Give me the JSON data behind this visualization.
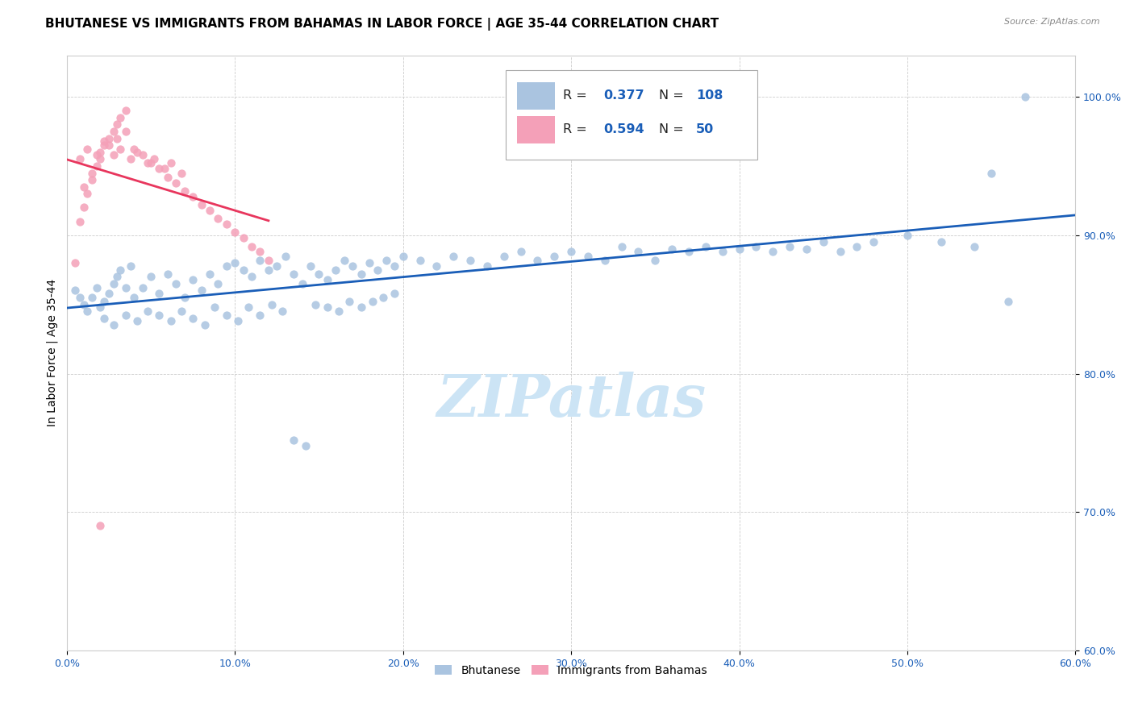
{
  "title": "BHUTANESE VS IMMIGRANTS FROM BAHAMAS IN LABOR FORCE | AGE 35-44 CORRELATION CHART",
  "source": "Source: ZipAtlas.com",
  "ylabel": "In Labor Force | Age 35-44",
  "xlim": [
    0.0,
    0.6
  ],
  "ylim": [
    0.6,
    1.03
  ],
  "xtick_labels": [
    "0.0%",
    "10.0%",
    "20.0%",
    "30.0%",
    "40.0%",
    "50.0%",
    "60.0%"
  ],
  "xtick_values": [
    0.0,
    0.1,
    0.2,
    0.3,
    0.4,
    0.5,
    0.6
  ],
  "ytick_labels": [
    "100.0%",
    "90.0%",
    "80.0%",
    "70.0%",
    "60.0%"
  ],
  "ytick_values": [
    1.0,
    0.9,
    0.8,
    0.7,
    0.6
  ],
  "blue_color": "#aac4e0",
  "pink_color": "#f4a0b8",
  "blue_line_color": "#1a5eb8",
  "pink_line_color": "#e8365d",
  "blue_R": 0.377,
  "blue_N": 108,
  "pink_R": 0.594,
  "pink_N": 50,
  "blue_scatter_x": [
    0.005,
    0.008,
    0.01,
    0.012,
    0.015,
    0.018,
    0.02,
    0.022,
    0.025,
    0.028,
    0.03,
    0.032,
    0.035,
    0.038,
    0.04,
    0.045,
    0.05,
    0.055,
    0.06,
    0.065,
    0.07,
    0.075,
    0.08,
    0.085,
    0.09,
    0.095,
    0.1,
    0.105,
    0.11,
    0.115,
    0.12,
    0.125,
    0.13,
    0.135,
    0.14,
    0.145,
    0.15,
    0.155,
    0.16,
    0.165,
    0.17,
    0.175,
    0.18,
    0.185,
    0.19,
    0.195,
    0.2,
    0.21,
    0.22,
    0.23,
    0.24,
    0.25,
    0.26,
    0.27,
    0.28,
    0.29,
    0.3,
    0.31,
    0.32,
    0.33,
    0.34,
    0.35,
    0.36,
    0.37,
    0.38,
    0.39,
    0.4,
    0.41,
    0.42,
    0.43,
    0.44,
    0.45,
    0.46,
    0.47,
    0.48,
    0.5,
    0.52,
    0.54,
    0.55,
    0.57,
    0.022,
    0.028,
    0.035,
    0.042,
    0.048,
    0.055,
    0.062,
    0.068,
    0.075,
    0.082,
    0.088,
    0.095,
    0.102,
    0.108,
    0.115,
    0.122,
    0.128,
    0.135,
    0.142,
    0.148,
    0.155,
    0.162,
    0.168,
    0.175,
    0.182,
    0.188,
    0.195,
    0.56
  ],
  "blue_scatter_y": [
    0.86,
    0.855,
    0.85,
    0.845,
    0.855,
    0.862,
    0.848,
    0.852,
    0.858,
    0.865,
    0.87,
    0.875,
    0.862,
    0.878,
    0.855,
    0.862,
    0.87,
    0.858,
    0.872,
    0.865,
    0.855,
    0.868,
    0.86,
    0.872,
    0.865,
    0.878,
    0.88,
    0.875,
    0.87,
    0.882,
    0.875,
    0.878,
    0.885,
    0.872,
    0.865,
    0.878,
    0.872,
    0.868,
    0.875,
    0.882,
    0.878,
    0.872,
    0.88,
    0.875,
    0.882,
    0.878,
    0.885,
    0.882,
    0.878,
    0.885,
    0.882,
    0.878,
    0.885,
    0.888,
    0.882,
    0.885,
    0.888,
    0.885,
    0.882,
    0.892,
    0.888,
    0.882,
    0.89,
    0.888,
    0.892,
    0.888,
    0.89,
    0.892,
    0.888,
    0.892,
    0.89,
    0.895,
    0.888,
    0.892,
    0.895,
    0.9,
    0.895,
    0.892,
    0.945,
    1.0,
    0.84,
    0.835,
    0.842,
    0.838,
    0.845,
    0.842,
    0.838,
    0.845,
    0.84,
    0.835,
    0.848,
    0.842,
    0.838,
    0.848,
    0.842,
    0.85,
    0.845,
    0.752,
    0.748,
    0.85,
    0.848,
    0.845,
    0.852,
    0.848,
    0.852,
    0.855,
    0.858,
    0.852
  ],
  "pink_scatter_x": [
    0.005,
    0.008,
    0.01,
    0.012,
    0.015,
    0.018,
    0.02,
    0.022,
    0.025,
    0.028,
    0.03,
    0.032,
    0.035,
    0.01,
    0.015,
    0.02,
    0.025,
    0.03,
    0.035,
    0.04,
    0.045,
    0.05,
    0.055,
    0.06,
    0.065,
    0.07,
    0.075,
    0.08,
    0.085,
    0.09,
    0.095,
    0.1,
    0.105,
    0.11,
    0.115,
    0.12,
    0.008,
    0.012,
    0.018,
    0.022,
    0.028,
    0.032,
    0.038,
    0.042,
    0.048,
    0.052,
    0.058,
    0.062,
    0.068,
    0.02
  ],
  "pink_scatter_y": [
    0.88,
    0.91,
    0.92,
    0.93,
    0.94,
    0.95,
    0.96,
    0.965,
    0.97,
    0.975,
    0.98,
    0.985,
    0.99,
    0.935,
    0.945,
    0.955,
    0.965,
    0.97,
    0.975,
    0.962,
    0.958,
    0.952,
    0.948,
    0.942,
    0.938,
    0.932,
    0.928,
    0.922,
    0.918,
    0.912,
    0.908,
    0.902,
    0.898,
    0.892,
    0.888,
    0.882,
    0.955,
    0.962,
    0.958,
    0.968,
    0.958,
    0.962,
    0.955,
    0.96,
    0.952,
    0.955,
    0.948,
    0.952,
    0.945,
    0.69
  ],
  "watermark_text": "ZIPatlas",
  "watermark_color": "#cce4f5",
  "title_fontsize": 11,
  "axis_label_fontsize": 10,
  "tick_fontsize": 9,
  "source_fontsize": 8
}
